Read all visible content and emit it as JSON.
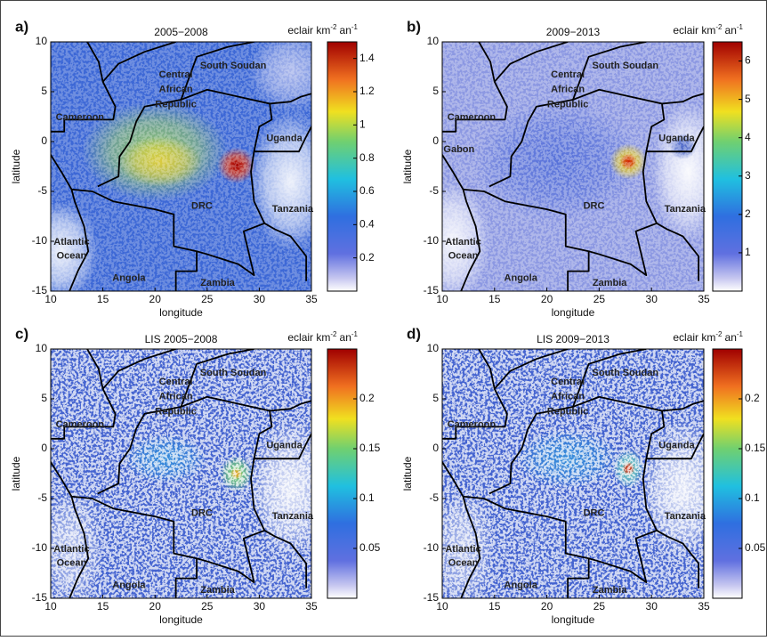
{
  "panels": [
    {
      "letter": "a)",
      "title": "2005−2008",
      "unit": [
        "eclair km",
        "-2",
        "an",
        "-1"
      ],
      "xlabel": "longitude",
      "ylabel": "latitude",
      "xlim": [
        10,
        35
      ],
      "ylim": [
        -15,
        10
      ],
      "xticks": [
        10,
        15,
        20,
        25,
        30,
        35
      ],
      "yticks": [
        -15,
        -10,
        -5,
        0,
        5,
        10
      ],
      "cbar_lim": [
        0,
        1.5
      ],
      "cbar_ticks": [
        0.2,
        0.4,
        0.6,
        0.8,
        1,
        1.2,
        1.4
      ],
      "places": [
        "Central",
        "African",
        "Republic",
        "South Soudan",
        "Cameroon",
        "Uganda",
        "DRC",
        "Tanzania",
        "Atlantic",
        "Ocean",
        "Angola",
        "Zambia"
      ]
    },
    {
      "letter": "b)",
      "title": "2009−2013",
      "unit": [
        "eclair km",
        "-2",
        "an",
        "-1"
      ],
      "xlabel": "longitude",
      "ylabel": "latitude",
      "xlim": [
        10,
        35
      ],
      "ylim": [
        -15,
        10
      ],
      "xticks": [
        10,
        15,
        20,
        25,
        30,
        35
      ],
      "yticks": [
        -15,
        -10,
        -5,
        0,
        5,
        10
      ],
      "cbar_lim": [
        0,
        6.5
      ],
      "cbar_ticks": [
        1,
        2,
        3,
        4,
        5,
        6
      ],
      "places": [
        "Central",
        "African",
        "Republic",
        "South Soudan",
        "Cameroon",
        "Uganda",
        "DRC",
        "Tanzania",
        "Atlantic",
        "Ocean",
        "Angola",
        "Zambia",
        "Gabon"
      ]
    },
    {
      "letter": "c)",
      "title": "LIS 2005−2008",
      "unit": [
        "eclair km",
        "-2",
        "an",
        "-1"
      ],
      "xlabel": "longitude",
      "ylabel": "latitude",
      "xlim": [
        10,
        35
      ],
      "ylim": [
        -15,
        10
      ],
      "xticks": [
        10,
        15,
        20,
        25,
        30,
        35
      ],
      "yticks": [
        -15,
        -10,
        -5,
        0,
        5,
        10
      ],
      "cbar_lim": [
        0,
        0.25
      ],
      "cbar_ticks": [
        0.05,
        0.1,
        0.15,
        0.2
      ],
      "places": [
        "Central",
        "African",
        "Republic",
        "South Soudan",
        "Cameroon",
        "Uganda",
        "DRC",
        "Tanzania",
        "Atlantic",
        "Ocean",
        "Angola",
        "Zambia"
      ]
    },
    {
      "letter": "d)",
      "title": "LIS 2009−2013",
      "unit": [
        "eclair km",
        "-2",
        "an",
        "-1"
      ],
      "xlabel": "longitude",
      "ylabel": "latitude",
      "xlim": [
        10,
        35
      ],
      "ylim": [
        -15,
        10
      ],
      "xticks": [
        10,
        15,
        20,
        25,
        30,
        35
      ],
      "yticks": [
        -15,
        -10,
        -5,
        0,
        5,
        10
      ],
      "cbar_lim": [
        0,
        0.25
      ],
      "cbar_ticks": [
        0.05,
        0.1,
        0.15,
        0.2
      ],
      "places": [
        "Central",
        "African",
        "Republic",
        "South Soudan",
        "Cameroon",
        "Uganda",
        "DRC",
        "Tanzania",
        "Atlantic",
        "Ocean",
        "Angola",
        "Zambia"
      ]
    }
  ]
}
